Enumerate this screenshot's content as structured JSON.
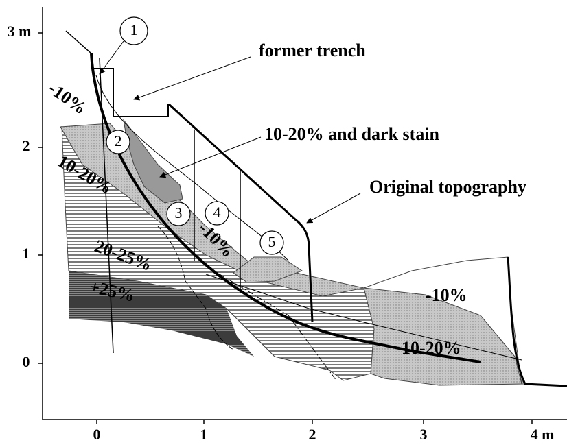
{
  "axes": {
    "x_ticks": [
      "0",
      "1",
      "2",
      "3",
      "4 m"
    ],
    "y_ticks": [
      "0",
      "1",
      "2",
      "3 m"
    ]
  },
  "callouts": [
    "1",
    "2",
    "3",
    "4",
    "5"
  ],
  "annotations": {
    "former_trench": "former trench",
    "dark_stain": "10-20% and dark stain",
    "original_topography": "Original topography"
  },
  "zones": [
    "-10%",
    "10-20%",
    "20-25%",
    "+25%",
    "-10%",
    "-10%",
    "10-20%"
  ]
}
